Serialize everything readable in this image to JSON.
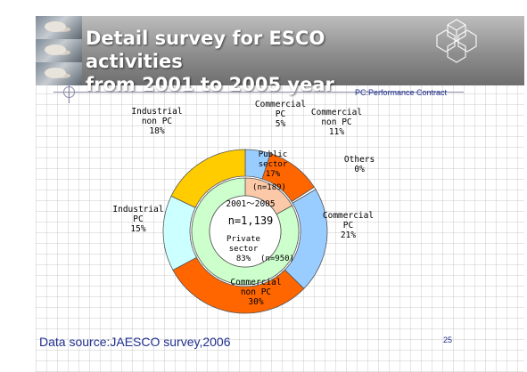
{
  "title_line1": "Detail survey for ESCO activities",
  "title_line2": "from 2001 to 2005 year",
  "note": "PC:Performance Contract",
  "footer": "Data source:JAESCO survey,2006",
  "page_number": "25",
  "colors": {
    "public_sector": "#fcc9a8",
    "private_sector": "#ccffcc",
    "commercial_pc": "#99ccff",
    "commercial_non_pc": "#ff6600",
    "others": "#ffffff",
    "industrial_pc": "#ccffff",
    "industrial_non_pc": "#ffcc00",
    "title_text": "#ffffff",
    "footer_text": "#1f2f8f"
  },
  "chart_data": {
    "type": "pie",
    "subtype": "double-donut",
    "center_labels": [
      "2001～2005",
      "n=1,139"
    ],
    "inner_ring": [
      {
        "name": "Public sector",
        "label_lines": [
          "Public",
          "sector",
          "17%"
        ],
        "value": 17,
        "n": "(n=189)"
      },
      {
        "name": "Private sector",
        "label_lines": [
          "Private",
          "sector",
          "83%"
        ],
        "value": 83,
        "n": "(n=950)"
      }
    ],
    "outer_ring": [
      {
        "label_lines": [
          "Commercial",
          "PC",
          "5%"
        ],
        "value": 5,
        "ring": "public"
      },
      {
        "label_lines": [
          "Commercial",
          "non PC",
          "11%"
        ],
        "value": 11,
        "ring": "public"
      },
      {
        "label_lines": [
          "Others",
          "0%"
        ],
        "value": 0.5,
        "display_value": 0,
        "ring": "public"
      },
      {
        "label_lines": [
          "Commercial",
          "PC",
          "21%"
        ],
        "value": 21,
        "ring": "private"
      },
      {
        "label_lines": [
          "Commercial",
          "non PC",
          "30%"
        ],
        "value": 30,
        "ring": "private"
      },
      {
        "label_lines": [
          "Industrial",
          "PC",
          "15%"
        ],
        "value": 15,
        "ring": "private"
      },
      {
        "label_lines": [
          "Industrial",
          "non PC",
          "18%"
        ],
        "value": 18,
        "ring": "private"
      }
    ]
  }
}
